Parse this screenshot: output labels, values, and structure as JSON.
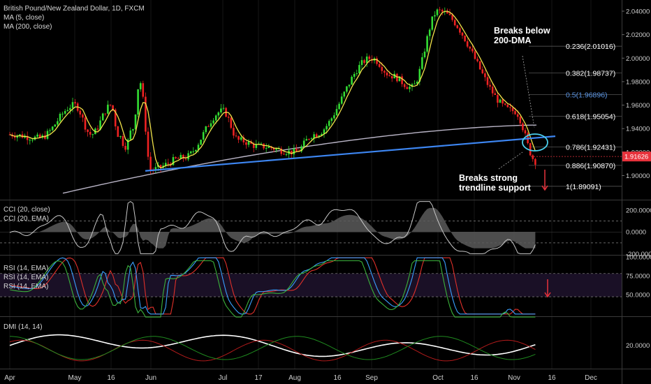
{
  "header": {
    "symbol_line": "British Pound/New Zealand Dollar, 1D, FXCM",
    "ma_fast": "MA (5, close)",
    "ma_slow": "MA (200, close)"
  },
  "price_tag": {
    "value": "1.91626",
    "color": "#e8323c"
  },
  "colors": {
    "up": "#33dd33",
    "down": "#ee2222",
    "ma5": "#f2e34a",
    "ma200": "#b9b4c6",
    "trendline": "#3d86f2",
    "callout": "#4bd0ee",
    "fib_half": "#5b97e8",
    "cci_line": "#c8c8c8",
    "cci_fill": "#5a5a5a",
    "rsi_red": "#e0302a",
    "rsi_blue": "#3aa0ff",
    "rsi_green": "#3bb23b",
    "rsi_band": "#1a1026",
    "dmi_white": "#ffffff",
    "dmi_red": "#b21b1b",
    "dmi_green": "#1f8a1f"
  },
  "annotations": {
    "breaks_below": [
      "Breaks below",
      "200-DMA"
    ],
    "breaks_trendline": [
      "Breaks strong",
      "trendline support"
    ]
  },
  "chart_data": [
    {
      "type": "candlestick",
      "title": "British Pound/New Zealand Dollar, 1D, FXCM",
      "ylim": [
        1.8795,
        2.0495
      ],
      "y_ticks": [
        "1.90000",
        "1.92000",
        "1.94000",
        "1.96000",
        "1.98000",
        "2.00000",
        "2.02000",
        "2.04000"
      ],
      "x_ticks": [
        "Apr",
        "May",
        "16",
        "Jun",
        "Jul",
        "17",
        "Aug",
        "16",
        "Sep",
        "Oct",
        "16",
        "Nov",
        "16",
        "Dec"
      ],
      "price_path": [
        [
          "Apr",
          1.935
        ],
        [
          "Apr",
          1.932
        ],
        [
          "May",
          1.96
        ],
        [
          "May",
          1.935
        ],
        [
          "16",
          1.96
        ],
        [
          "16",
          1.935
        ],
        [
          "Jun",
          1.905
        ],
        [
          "Jun",
          1.915
        ],
        [
          "Jul",
          1.955
        ],
        [
          "Jul",
          1.93
        ],
        [
          "17",
          1.925
        ],
        [
          "Aug",
          1.92
        ],
        [
          "Aug",
          1.935
        ],
        [
          "16",
          1.925
        ],
        [
          "16",
          1.94
        ],
        [
          "Sep",
          2.0
        ],
        [
          "Sep",
          1.985
        ],
        [
          "Sep",
          1.975
        ],
        [
          "Oct",
          2.04
        ],
        [
          "16",
          1.98
        ],
        [
          "Nov",
          1.955
        ],
        [
          "Nov",
          1.912
        ]
      ],
      "fibonacci_levels": [
        {
          "ratio": "0.236",
          "value": "2.01016"
        },
        {
          "ratio": "0.382",
          "value": "1.98737"
        },
        {
          "ratio": "0.5",
          "value": "1.96896"
        },
        {
          "ratio": "0.618",
          "value": "1.95054"
        },
        {
          "ratio": "0.786",
          "value": "1.92431"
        },
        {
          "ratio": "0.886",
          "value": "1.90870"
        },
        {
          "ratio": "1",
          "value": "1.89091"
        }
      ],
      "trendline": {
        "from": [
          "Jun",
          1.904
        ],
        "to": [
          "16",
          1.932
        ]
      }
    },
    {
      "type": "line",
      "series": [
        {
          "name": "CCI (20, close)"
        },
        {
          "name": "CCI (20, EMA)"
        }
      ],
      "ylim": [
        -210,
        290
      ],
      "y_ticks": [
        "200.0000",
        "0.0000",
        "-200.0000"
      ],
      "reference_lines": [
        100,
        -100
      ]
    },
    {
      "type": "line",
      "series": [
        {
          "name": "RSI (14, EMA)"
        },
        {
          "name": "RSI (14, EMA)"
        },
        {
          "name": "RSI (14, EMA)"
        }
      ],
      "ylim": [
        21,
        102
      ],
      "y_ticks": [
        "100.0000",
        "75.0000",
        "50.0000"
      ]
    },
    {
      "type": "line",
      "series": [
        {
          "name": "DMI (14, 14)"
        }
      ],
      "ylim": [
        2,
        42
      ],
      "y_ticks": [
        "20.0000"
      ]
    }
  ]
}
